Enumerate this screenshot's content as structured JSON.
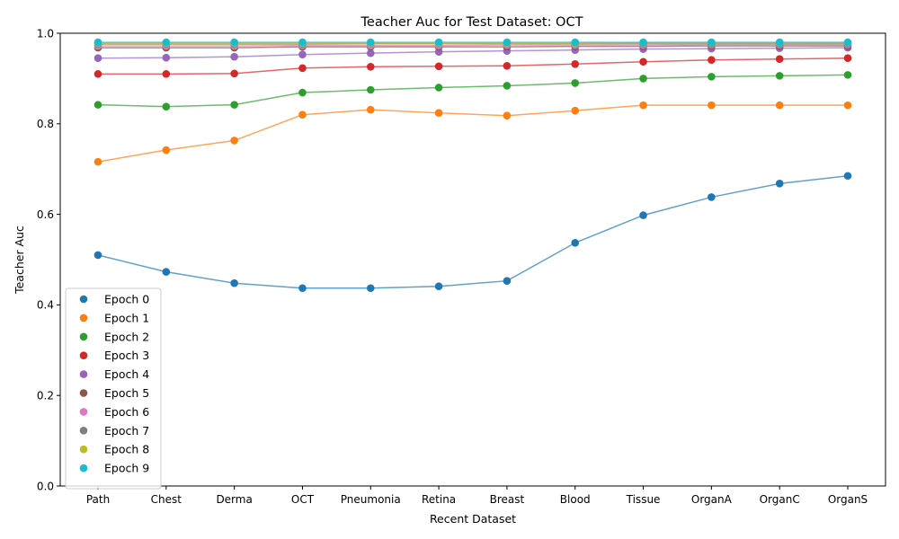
{
  "chart_data": {
    "type": "line",
    "title": "Teacher Auc for Test Dataset: OCT",
    "xlabel": "Recent Dataset",
    "ylabel": "Teacher Auc",
    "ylim": [
      0.0,
      1.0
    ],
    "yticks": [
      "0.0",
      "0.2",
      "0.4",
      "0.6",
      "0.8",
      "1.0"
    ],
    "grid": false,
    "legend_position": "lower-left",
    "categories": [
      "Path",
      "Chest",
      "Derma",
      "OCT",
      "Pneumonia",
      "Retina",
      "Breast",
      "Blood",
      "Tissue",
      "OrganA",
      "OrganC",
      "OrganS"
    ],
    "series": [
      {
        "name": "Epoch 0",
        "color": "#1f77b4",
        "values": [
          0.51,
          0.473,
          0.448,
          0.437,
          0.437,
          0.441,
          0.453,
          0.537,
          0.598,
          0.638,
          0.668,
          0.685
        ]
      },
      {
        "name": "Epoch 1",
        "color": "#ff7f0e",
        "values": [
          0.716,
          0.742,
          0.763,
          0.82,
          0.831,
          0.824,
          0.818,
          0.829,
          0.841,
          0.841,
          0.841,
          0.841
        ]
      },
      {
        "name": "Epoch 2",
        "color": "#2ca02c",
        "values": [
          0.842,
          0.838,
          0.842,
          0.869,
          0.875,
          0.88,
          0.884,
          0.89,
          0.9,
          0.904,
          0.906,
          0.908
        ]
      },
      {
        "name": "Epoch 3",
        "color": "#d62728",
        "values": [
          0.91,
          0.91,
          0.911,
          0.923,
          0.926,
          0.927,
          0.928,
          0.932,
          0.937,
          0.941,
          0.943,
          0.945
        ]
      },
      {
        "name": "Epoch 4",
        "color": "#9467bd",
        "values": [
          0.945,
          0.946,
          0.948,
          0.953,
          0.956,
          0.959,
          0.961,
          0.963,
          0.965,
          0.966,
          0.967,
          0.968
        ]
      },
      {
        "name": "Epoch 5",
        "color": "#8c564b",
        "values": [
          0.968,
          0.968,
          0.968,
          0.97,
          0.97,
          0.97,
          0.97,
          0.971,
          0.971,
          0.972,
          0.972,
          0.972
        ]
      },
      {
        "name": "Epoch 6",
        "color": "#e377c2",
        "values": [
          0.972,
          0.972,
          0.972,
          0.973,
          0.973,
          0.973,
          0.974,
          0.974,
          0.974,
          0.975,
          0.975,
          0.975
        ]
      },
      {
        "name": "Epoch 7",
        "color": "#7f7f7f",
        "values": [
          0.976,
          0.976,
          0.976,
          0.976,
          0.977,
          0.977,
          0.977,
          0.977,
          0.977,
          0.977,
          0.977,
          0.977
        ]
      },
      {
        "name": "Epoch 8",
        "color": "#bcbd22",
        "values": [
          0.978,
          0.978,
          0.978,
          0.978,
          0.978,
          0.978,
          0.978,
          0.978,
          0.979,
          0.979,
          0.979,
          0.979
        ]
      },
      {
        "name": "Epoch 9",
        "color": "#17becf",
        "values": [
          0.98,
          0.98,
          0.98,
          0.98,
          0.98,
          0.98,
          0.98,
          0.98,
          0.98,
          0.98,
          0.98,
          0.98
        ]
      }
    ]
  }
}
